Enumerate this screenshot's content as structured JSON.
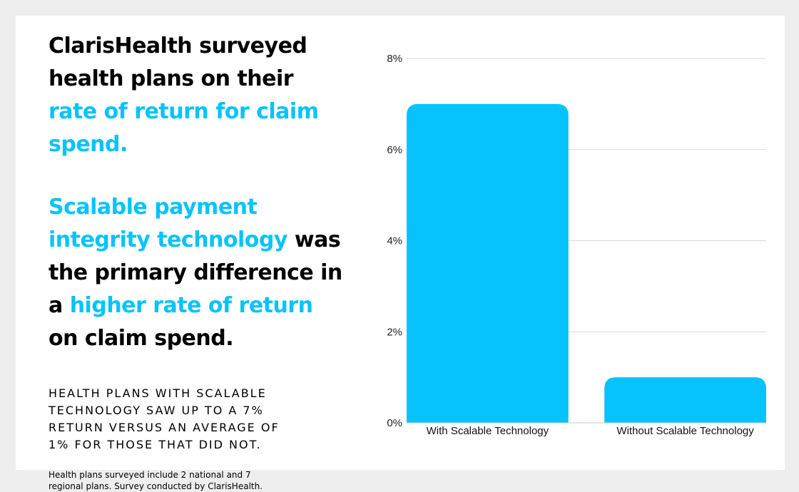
{
  "colors": {
    "accent": "#06c3fb",
    "text": "#000000",
    "grid": "#d9d9d9"
  },
  "text": {
    "p1_a": "ClarisHealth surveyed health plans on their ",
    "p1_b": "rate of return for claim spend.",
    "p2_a": "Scalable payment integrity technology",
    "p2_b": " was the primary difference in a ",
    "p2_c": "higher rate of return",
    "p2_d": " on claim spend.",
    "caps": "HEALTH PLANS WITH SCALABLE TECHNOLOGY SAW UP TO A 7% RETURN VERSUS AN AVERAGE OF 1% FOR THOSE THAT DID NOT.",
    "note": "Health plans surveyed include 2 national and 7 regional plans. Survey conducted by ClarisHealth."
  },
  "chart_data": {
    "type": "bar",
    "categories": [
      "With Scalable Technology",
      "Without  Scalable Technology"
    ],
    "values": [
      7,
      1
    ],
    "ylim": [
      0,
      8
    ],
    "yticks": [
      0,
      2,
      4,
      6,
      8
    ],
    "ytick_labels": [
      "0%",
      "2%",
      "4%",
      "6%",
      "8%"
    ],
    "grid": true,
    "legend": "none",
    "bar_color": "#06c3fb"
  }
}
